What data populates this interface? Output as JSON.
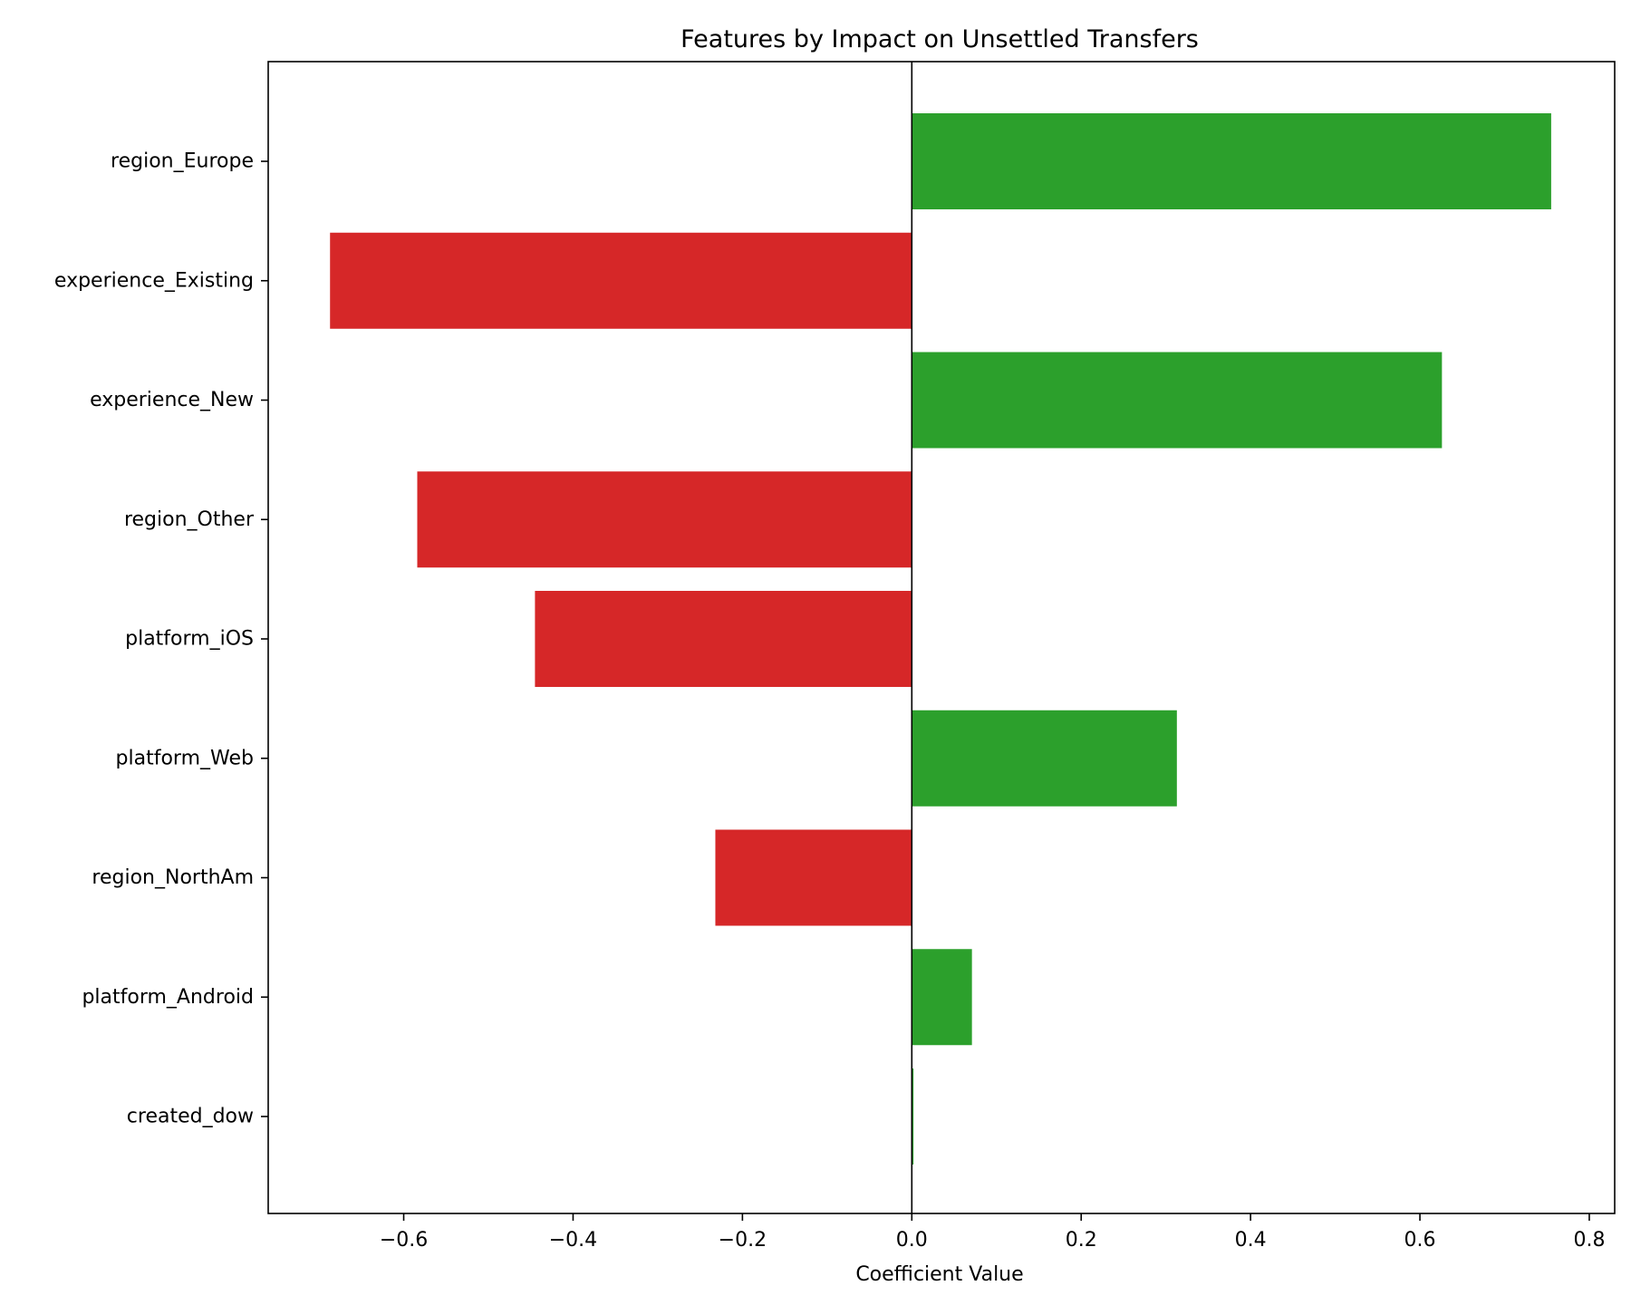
{
  "chart_data": {
    "type": "bar",
    "orientation": "horizontal",
    "title": "Features by Impact on Unsettled Transfers",
    "xlabel": "Coefficient Value",
    "ylabel": "",
    "categories": [
      "region_Europe",
      "experience_Existing",
      "experience_New",
      "region_Other",
      "platform_iOS",
      "platform_Web",
      "region_NorthAm",
      "platform_Android",
      "created_dow"
    ],
    "values": [
      0.755,
      -0.687,
      0.626,
      -0.584,
      -0.445,
      0.313,
      -0.232,
      0.071,
      0.002
    ],
    "xlim": [
      -0.76,
      0.83
    ],
    "xticks": [
      -0.6,
      -0.4,
      -0.2,
      0.0,
      0.2,
      0.4,
      0.6,
      0.8
    ],
    "xtick_labels": [
      "−0.6",
      "−0.4",
      "−0.2",
      "0.0",
      "0.2",
      "0.4",
      "0.6",
      "0.8"
    ],
    "colors": {
      "positive": "#2ca02c",
      "negative": "#d62728",
      "zero_line": "#000000",
      "axes": "#000000"
    },
    "grid": false,
    "legend": "none"
  }
}
